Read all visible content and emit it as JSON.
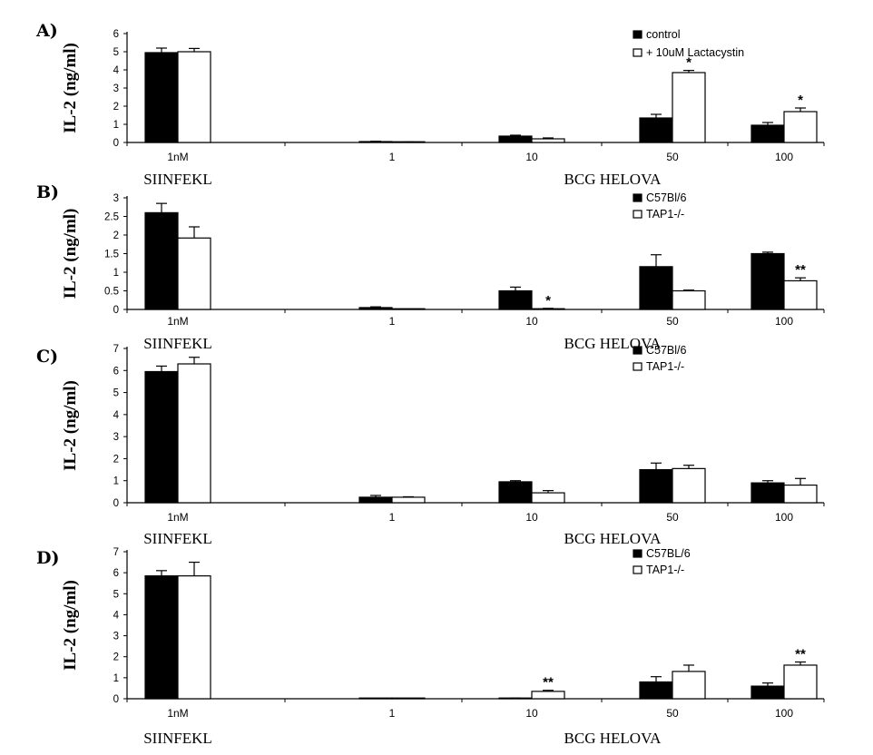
{
  "colors": {
    "series1_fill": "#000000",
    "series2_fill": "#ffffff",
    "ink": "#000000"
  },
  "chart_data": [
    {
      "type": "bar",
      "panel_label": "A)",
      "ylabel": "IL-2 (ng/ml)",
      "ylim": [
        0,
        6
      ],
      "yticks": [
        "0",
        "1",
        "2",
        "3",
        "4",
        "5",
        "6"
      ],
      "categories": [
        "1nM",
        "1",
        "10",
        "50",
        "100"
      ],
      "group_labels": [
        "SIINFEKL",
        "BCG HELOVA"
      ],
      "legend_position": "top-right",
      "grid": false,
      "series": [
        {
          "name": "control",
          "color": "#000000",
          "values": [
            4.95,
            0.05,
            0.35,
            1.35,
            0.95
          ],
          "errors": [
            0.25,
            0.02,
            0.05,
            0.2,
            0.15
          ]
        },
        {
          "name": "+ 10uM Lactacystin",
          "color": "#ffffff",
          "values": [
            5.0,
            0.02,
            0.2,
            3.85,
            1.7
          ],
          "errors": [
            0.18,
            0.01,
            0.05,
            0.12,
            0.2
          ]
        }
      ],
      "annotations": [
        {
          "series": 1,
          "category": 3,
          "text": "*"
        },
        {
          "series": 1,
          "category": 4,
          "text": "*"
        }
      ]
    },
    {
      "type": "bar",
      "panel_label": "B)",
      "ylabel": "IL-2 (ng/ml)",
      "ylim": [
        0,
        3
      ],
      "yticks": [
        "0",
        "0.5",
        "1",
        "1.5",
        "2",
        "2.5",
        "3"
      ],
      "categories": [
        "1nM",
        "1",
        "10",
        "50",
        "100"
      ],
      "group_labels": [
        "SIINFEKL",
        "BCG HELOVA"
      ],
      "legend_position": "top-right",
      "grid": false,
      "series": [
        {
          "name": "C57Bl/6",
          "color": "#000000",
          "values": [
            2.6,
            0.05,
            0.5,
            1.15,
            1.5
          ],
          "errors": [
            0.25,
            0.02,
            0.1,
            0.32,
            0.04
          ]
        },
        {
          "name": "TAP1-/-",
          "color": "#ffffff",
          "values": [
            1.92,
            0.0,
            0.02,
            0.5,
            0.77
          ],
          "errors": [
            0.3,
            0.0,
            0.01,
            0.02,
            0.08
          ]
        }
      ],
      "annotations": [
        {
          "series": 1,
          "category": 2,
          "text": "*"
        },
        {
          "series": 1,
          "category": 4,
          "text": "**"
        }
      ]
    },
    {
      "type": "bar",
      "panel_label": "C)",
      "ylabel": "IL-2 (ng/ml)",
      "ylim": [
        0,
        7
      ],
      "yticks": [
        "0",
        "1",
        "2",
        "3",
        "4",
        "5",
        "6",
        "7"
      ],
      "categories": [
        "1nM",
        "1",
        "10",
        "50",
        "100"
      ],
      "group_labels": [
        "SIINFEKL",
        "BCG HELOVA"
      ],
      "legend_position": "top-right",
      "grid": false,
      "series": [
        {
          "name": "C57Bl/6",
          "color": "#000000",
          "values": [
            5.95,
            0.25,
            0.95,
            1.5,
            0.9
          ],
          "errors": [
            0.25,
            0.08,
            0.05,
            0.3,
            0.1
          ]
        },
        {
          "name": "TAP1-/-",
          "color": "#ffffff",
          "values": [
            6.3,
            0.25,
            0.45,
            1.55,
            0.8
          ],
          "errors": [
            0.3,
            0.02,
            0.1,
            0.15,
            0.3
          ]
        }
      ],
      "annotations": []
    },
    {
      "type": "bar",
      "panel_label": "D)",
      "ylabel": "IL-2 (ng/ml)",
      "ylim": [
        0,
        7
      ],
      "yticks": [
        "0",
        "1",
        "2",
        "3",
        "4",
        "5",
        "6",
        "7"
      ],
      "categories": [
        "1nM",
        "1",
        "10",
        "50",
        "100"
      ],
      "group_labels": [
        "SIINFEKL",
        "BCG HELOVA"
      ],
      "legend_position": "top-right",
      "grid": false,
      "series": [
        {
          "name": "C57BL/6",
          "color": "#000000",
          "values": [
            5.85,
            0.0,
            0.02,
            0.8,
            0.6
          ],
          "errors": [
            0.25,
            0.0,
            0.01,
            0.25,
            0.15
          ]
        },
        {
          "name": "TAP1-/-",
          "color": "#ffffff",
          "values": [
            5.85,
            0.0,
            0.35,
            1.3,
            1.6
          ],
          "errors": [
            0.65,
            0.0,
            0.05,
            0.3,
            0.15
          ]
        }
      ],
      "annotations": [
        {
          "series": 1,
          "category": 2,
          "text": "**"
        },
        {
          "series": 1,
          "category": 4,
          "text": "**"
        }
      ]
    }
  ]
}
